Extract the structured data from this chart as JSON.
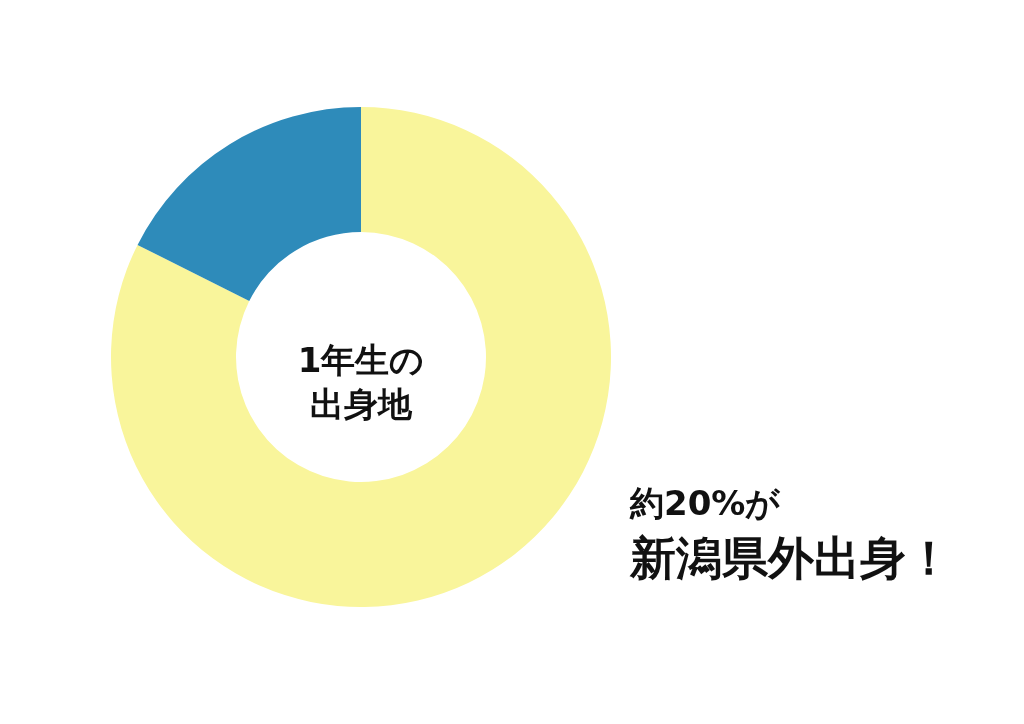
{
  "chart_data": {
    "type": "donut",
    "title": "1年生の出身地",
    "categories": [
      null,
      null
    ],
    "values": [
      82.4,
      17.6
    ],
    "colors": [
      "#f9f59b",
      "#2e8bba"
    ],
    "legend": false,
    "annotations": [
      "約20%が",
      "新潟県外出身！"
    ]
  }
}
